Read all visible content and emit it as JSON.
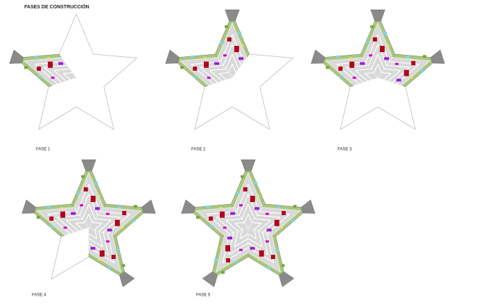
{
  "header": {
    "title": "FASES DE CONSTRUCCIÓN"
  },
  "phases": [
    {
      "label": "FASE 1"
    },
    {
      "label": "FASE 2"
    },
    {
      "label": "FASE 3"
    },
    {
      "label": "FASE 4"
    },
    {
      "label": "FASE 5"
    }
  ]
}
